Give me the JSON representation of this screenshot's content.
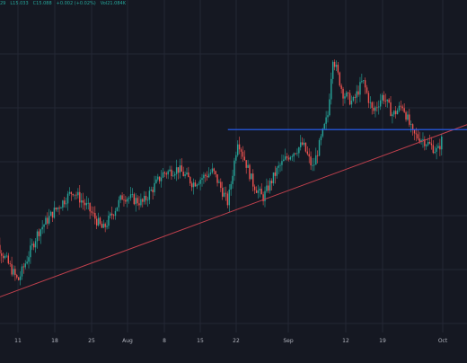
{
  "legend": {
    "high_partial": "29",
    "low": "L15.033",
    "close": "C15.088",
    "change": "+0.002 (+0.02%)",
    "volume": "Vol21.084K"
  },
  "colors": {
    "background": "#151822",
    "grid": "#232734",
    "up": "#26a69a",
    "down": "#ef5350",
    "support": "#c0404d",
    "resistance": "#2962ff",
    "tick_label": "#b2b5be"
  },
  "chart_data": {
    "type": "candlestick",
    "title": "",
    "xlabel": "",
    "ylabel": "",
    "x_ticks": [
      "11",
      "18",
      "25",
      "Aug",
      "8",
      "15",
      "22",
      "Sep",
      "12",
      "19",
      "Oct"
    ],
    "ylim": [
      10.4,
      17.2
    ],
    "approx_close_series": [
      {
        "x": "Jul 5",
        "y": 12.55
      },
      {
        "x": "Jul 11",
        "y": 11.45
      },
      {
        "x": "Jul 15",
        "y": 12.45
      },
      {
        "x": "Jul 18",
        "y": 12.85
      },
      {
        "x": "Jul 22",
        "y": 13.3
      },
      {
        "x": "Jul 25",
        "y": 12.95
      },
      {
        "x": "Jul 28",
        "y": 12.5
      },
      {
        "x": "Aug 1",
        "y": 13.2
      },
      {
        "x": "Aug 5",
        "y": 13.05
      },
      {
        "x": "Aug 9",
        "y": 13.65
      },
      {
        "x": "Aug 12",
        "y": 13.75
      },
      {
        "x": "Aug 15",
        "y": 13.45
      },
      {
        "x": "Aug 19",
        "y": 13.7
      },
      {
        "x": "Aug 22",
        "y": 13.05
      },
      {
        "x": "Aug 24",
        "y": 14.35
      },
      {
        "x": "Aug 27",
        "y": 13.45
      },
      {
        "x": "Aug 29",
        "y": 13.15
      },
      {
        "x": "Sep 1",
        "y": 13.75
      },
      {
        "x": "Sep 3",
        "y": 14.0
      },
      {
        "x": "Sep 6",
        "y": 14.25
      },
      {
        "x": "Sep 8",
        "y": 13.75
      },
      {
        "x": "Sep 11",
        "y": 14.85
      },
      {
        "x": "Sep 12",
        "y": 16.05
      },
      {
        "x": "Sep 14",
        "y": 15.3
      },
      {
        "x": "Sep 16",
        "y": 15.1
      },
      {
        "x": "Sep 18",
        "y": 15.55
      },
      {
        "x": "Sep 20",
        "y": 14.9
      },
      {
        "x": "Sep 22",
        "y": 15.25
      },
      {
        "x": "Sep 24",
        "y": 14.85
      },
      {
        "x": "Sep 26",
        "y": 15.05
      },
      {
        "x": "Sep 28",
        "y": 14.45
      },
      {
        "x": "Sep 30",
        "y": 14.35
      },
      {
        "x": "Oct 3",
        "y": 14.1
      },
      {
        "x": "Oct 4",
        "y": 14.4
      }
    ],
    "annotations": [
      {
        "type": "ascending-trendline",
        "from": {
          "x": "Jul 4",
          "y": 11.0
        },
        "to": {
          "x": "Oct 4",
          "y": 14.65
        }
      },
      {
        "type": "horizontal-resistance",
        "y": 14.55,
        "from_x": "Aug 22",
        "to_x": "Oct 4"
      }
    ],
    "grid": true,
    "legend": "top-left"
  }
}
